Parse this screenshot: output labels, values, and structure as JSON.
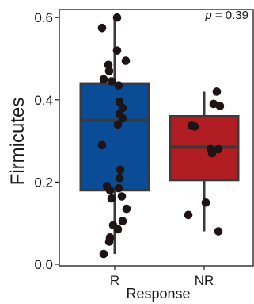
{
  "chart_data": {
    "type": "box",
    "title": "",
    "xlabel": "Response",
    "ylabel": "Firmicutes",
    "ylim": [
      0.0,
      0.62
    ],
    "yticks": [
      0.0,
      0.2,
      0.4,
      0.6
    ],
    "ytick_labels": [
      "0.0",
      "0.2",
      "0.4",
      "0.6"
    ],
    "grid": false,
    "legend": "none",
    "annotation": {
      "prefix": "p",
      "text": " = 0.39"
    },
    "categories": [
      "R",
      "NR"
    ],
    "colors": {
      "R": "#0a4d96",
      "NR": "#b01e23",
      "box_line": "#3a3a3a",
      "point": "#1e1416"
    },
    "series": [
      {
        "category": "R",
        "box": {
          "min": 0.025,
          "q1": 0.18,
          "median": 0.35,
          "q3": 0.44,
          "max": 0.6
        },
        "points": [
          [
            0.03,
            0.6
          ],
          [
            -0.16,
            0.575
          ],
          [
            0.03,
            0.52
          ],
          [
            0.14,
            0.495
          ],
          [
            -0.08,
            0.485
          ],
          [
            -0.07,
            0.47
          ],
          [
            -0.14,
            0.45
          ],
          [
            -0.04,
            0.445
          ],
          [
            0.05,
            0.435
          ],
          [
            0.06,
            0.395
          ],
          [
            0.1,
            0.38
          ],
          [
            0.06,
            0.365
          ],
          [
            0.1,
            0.355
          ],
          [
            0.04,
            0.34
          ],
          [
            -0.16,
            0.29
          ],
          [
            0.07,
            0.23
          ],
          [
            0.06,
            0.21
          ],
          [
            -0.1,
            0.19
          ],
          [
            0.05,
            0.185
          ],
          [
            -0.06,
            0.18
          ],
          [
            0.09,
            0.165
          ],
          [
            -0.04,
            0.16
          ],
          [
            0.15,
            0.135
          ],
          [
            0.1,
            0.105
          ],
          [
            -0.02,
            0.095
          ],
          [
            0.04,
            0.085
          ],
          [
            -0.06,
            0.065
          ],
          [
            -0.07,
            0.055
          ],
          [
            -0.14,
            0.025
          ]
        ]
      },
      {
        "category": "NR",
        "box": {
          "min": 0.08,
          "q1": 0.205,
          "median": 0.285,
          "q3": 0.36,
          "max": 0.42
        },
        "points": [
          [
            0.16,
            0.42
          ],
          [
            0.12,
            0.39
          ],
          [
            0.2,
            0.385
          ],
          [
            -0.16,
            0.337
          ],
          [
            -0.12,
            0.335
          ],
          [
            0.08,
            0.28
          ],
          [
            0.18,
            0.28
          ],
          [
            0.1,
            0.27
          ],
          [
            0.02,
            0.15
          ],
          [
            -0.2,
            0.12
          ],
          [
            0.18,
            0.08
          ]
        ]
      }
    ]
  }
}
